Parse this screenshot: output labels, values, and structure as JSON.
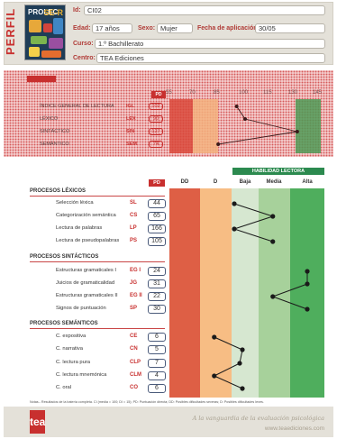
{
  "header": {
    "side_title": "PERFIL",
    "cover": {
      "title_left": "PROLEC",
      "title_right": "SE-R"
    },
    "fields": [
      {
        "label": "Id:",
        "value": "CI02"
      },
      {
        "label": "Edad:",
        "value": "17 años"
      },
      {
        "label": "Sexo:",
        "value": "Mujer"
      },
      {
        "label": "Fecha de aplicación:",
        "value": "30/05"
      },
      {
        "label": "Curso:",
        "value": "1.º Bachillerato"
      },
      {
        "label": "Centro:",
        "value": "TEA Ediciones"
      }
    ]
  },
  "summary": {
    "pd_label": "PD",
    "scale": [
      "55",
      "70",
      "85",
      "100",
      "115",
      "130",
      "145"
    ],
    "rows": [
      {
        "label": "ÍNDICE GENERAL DE LECTURA",
        "code": "IGL",
        "pd": "102",
        "value": 95
      },
      {
        "label": "LÉXICO",
        "code": "LEX",
        "pd": "90",
        "value": 100
      },
      {
        "label": "SINTÁCTICO",
        "code": "SIN",
        "pd": "127",
        "value": 131
      },
      {
        "label": "SEMÁNTICO",
        "code": "SEM",
        "pd": "74",
        "value": 84
      }
    ]
  },
  "chart": {
    "top_label": "HABILIDAD LECTORA",
    "pd_label": "PD",
    "columns": [
      "DD",
      "D",
      "Baja",
      "Media",
      "Alta"
    ],
    "colors": {
      "dd": "#de5f45",
      "d": "#f7bd84",
      "baja": "#d6e7d0",
      "media": "#a7d19b",
      "alta": "#4fae5d",
      "line": "#1a1a1a",
      "accent": "#c8302f"
    },
    "sections": [
      {
        "title": "PROCESOS LÉXICOS",
        "rows": [
          {
            "label": "Selección léxica",
            "code": "SL",
            "pd": "44",
            "level": 2.1
          },
          {
            "label": "Categorización semántica",
            "code": "CS",
            "pd": "65",
            "level": 3.45
          },
          {
            "label": "Lectura de palabras",
            "code": "LP",
            "pd": "166",
            "level": 2.1
          },
          {
            "label": "Lectura de pseudopalabras",
            "code": "PS",
            "pd": "105",
            "level": 3.45
          }
        ]
      },
      {
        "title": "PROCESOS SINTÁCTICOS",
        "rows": [
          {
            "label": "Estructuras gramaticales I",
            "code": "EG I",
            "pd": "24",
            "level": 4.5
          },
          {
            "label": "Juicios de gramaticalidad",
            "code": "JG",
            "pd": "31",
            "level": 4.5
          },
          {
            "label": "Estructuras gramaticales II",
            "code": "EG II",
            "pd": "22",
            "level": 3.45
          },
          {
            "label": "Signos de puntuación",
            "code": "SP",
            "pd": "30",
            "level": 4.5
          }
        ]
      },
      {
        "title": "PROCESOS SEMÁNTICOS",
        "rows": [
          {
            "label": "C. expositiva",
            "code": "CE",
            "pd": "6",
            "level": 1.45
          },
          {
            "label": "C. narrativa",
            "code": "CN",
            "pd": "5",
            "level": 2.4
          },
          {
            "label": "C. lectura pura",
            "code": "CLP",
            "pd": "7",
            "level": 2.3
          },
          {
            "label": "C. lectura mnemónica",
            "code": "CLM",
            "pd": "4",
            "level": 1.45
          },
          {
            "label": "C. oral",
            "code": "CO",
            "pd": "6",
            "level": 2.4
          }
        ]
      }
    ],
    "note": "Notas.- Resultados de la batería completa. CI (media = 100; DI = 15); PD: Puntuación directa; DD: Posibles dificultades severas; D: Posibles dificultades leves."
  },
  "footer": {
    "logo": "tea",
    "slogan": "A la vanguardia de la evaluación psicológica",
    "web": "www.teaediciones.com"
  }
}
